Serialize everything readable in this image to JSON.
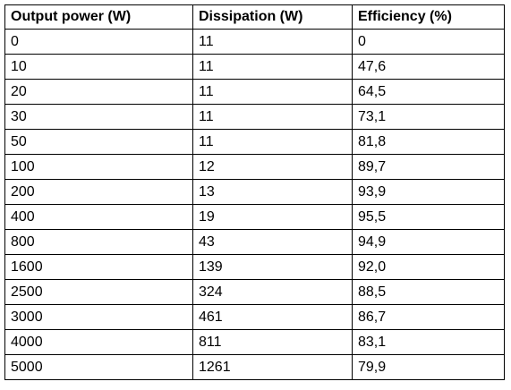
{
  "table": {
    "headers": [
      "Output power (W)",
      "Dissipation (W)",
      "Efficiency (%)"
    ],
    "rows": [
      [
        "0",
        "11",
        "0"
      ],
      [
        "10",
        "11",
        "47,6"
      ],
      [
        "20",
        "11",
        "64,5"
      ],
      [
        "30",
        "11",
        "73,1"
      ],
      [
        "50",
        "11",
        "81,8"
      ],
      [
        "100",
        "12",
        "89,7"
      ],
      [
        "200",
        "13",
        "93,9"
      ],
      [
        "400",
        "19",
        "95,5"
      ],
      [
        "800",
        "43",
        "94,9"
      ],
      [
        "1600",
        "139",
        "92,0"
      ],
      [
        "2500",
        "324",
        "88,5"
      ],
      [
        "3000",
        "461",
        "86,7"
      ],
      [
        "4000",
        "811",
        "83,1"
      ],
      [
        "5000",
        "1261",
        "79,9"
      ]
    ]
  }
}
